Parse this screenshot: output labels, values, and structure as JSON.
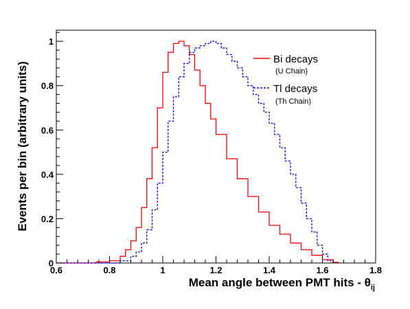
{
  "chart_data": {
    "type": "line",
    "xlabel": "Mean angle between PMT hits - θ",
    "xlabel_sub": "ij",
    "ylabel": "Events per bin (arbitrary units)",
    "xlim": [
      0.6,
      1.8
    ],
    "ylim": [
      0,
      1.05
    ],
    "x_ticks": [
      "0.6",
      "0.8",
      "1",
      "1.2",
      "1.4",
      "1.6",
      "1.8"
    ],
    "y_ticks": [
      "0",
      "0.2",
      "0.4",
      "0.6",
      "0.8",
      "1"
    ],
    "grid": false,
    "legend_position": "top-right",
    "series": [
      {
        "name": "Bi decays",
        "subtitle": "(U Chain)",
        "color": "#ff0000",
        "style": "solid",
        "x": [
          0.6,
          0.7,
          0.75,
          0.8,
          0.84,
          0.86,
          0.88,
          0.9,
          0.92,
          0.94,
          0.96,
          0.98,
          1.0,
          1.02,
          1.04,
          1.06,
          1.08,
          1.1,
          1.12,
          1.14,
          1.16,
          1.18,
          1.2,
          1.24,
          1.28,
          1.32,
          1.36,
          1.4,
          1.44,
          1.48,
          1.52,
          1.56,
          1.6,
          1.64,
          1.66
        ],
        "values": [
          0.0,
          0.0,
          0.005,
          0.01,
          0.03,
          0.06,
          0.1,
          0.16,
          0.25,
          0.38,
          0.52,
          0.7,
          0.86,
          0.95,
          0.99,
          1.0,
          0.98,
          0.94,
          0.87,
          0.8,
          0.72,
          0.65,
          0.58,
          0.47,
          0.38,
          0.3,
          0.23,
          0.17,
          0.13,
          0.09,
          0.06,
          0.035,
          0.015,
          0.003,
          0.0
        ]
      },
      {
        "name": "Tl decays",
        "subtitle": "(Th Chain)",
        "color": "#0000ff",
        "style": "dashed",
        "x": [
          0.6,
          0.7,
          0.8,
          0.84,
          0.88,
          0.9,
          0.92,
          0.94,
          0.96,
          0.98,
          1.0,
          1.02,
          1.04,
          1.06,
          1.08,
          1.1,
          1.12,
          1.14,
          1.16,
          1.18,
          1.2,
          1.22,
          1.24,
          1.26,
          1.28,
          1.3,
          1.32,
          1.34,
          1.36,
          1.38,
          1.4,
          1.42,
          1.44,
          1.46,
          1.48,
          1.5,
          1.52,
          1.54,
          1.56,
          1.58,
          1.6,
          1.62,
          1.64
        ],
        "values": [
          0.0,
          0.0,
          0.0,
          0.01,
          0.03,
          0.05,
          0.09,
          0.15,
          0.24,
          0.36,
          0.5,
          0.64,
          0.75,
          0.84,
          0.9,
          0.95,
          0.97,
          0.98,
          0.99,
          1.0,
          0.99,
          0.97,
          0.94,
          0.91,
          0.88,
          0.84,
          0.8,
          0.76,
          0.72,
          0.68,
          0.63,
          0.58,
          0.52,
          0.46,
          0.4,
          0.34,
          0.27,
          0.2,
          0.14,
          0.08,
          0.04,
          0.01,
          0.0
        ]
      }
    ]
  }
}
